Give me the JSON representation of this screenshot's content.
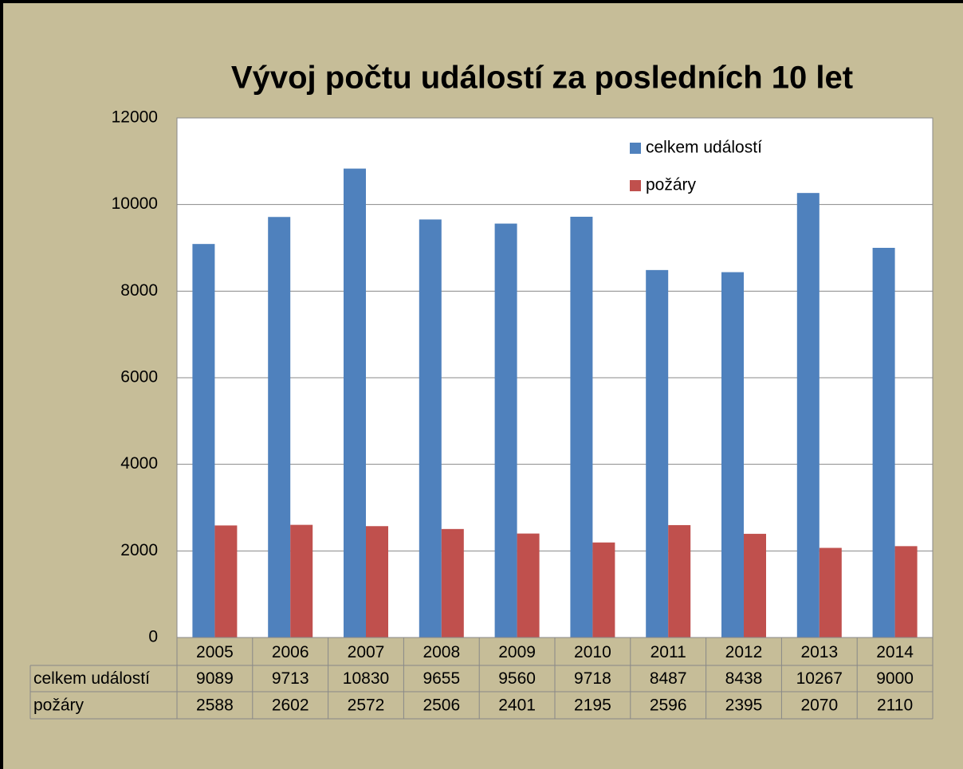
{
  "chart_data": {
    "type": "bar",
    "title": "Vývoj počtu událostí za posledních 10 let",
    "categories": [
      "2005",
      "2006",
      "2007",
      "2008",
      "2009",
      "2010",
      "2011",
      "2012",
      "2013",
      "2014"
    ],
    "series": [
      {
        "name": "celkem událostí",
        "color": "#4f81bd",
        "values": [
          9089,
          9713,
          10830,
          9655,
          9560,
          9718,
          8487,
          8438,
          10267,
          9000
        ]
      },
      {
        "name": "požáry",
        "color": "#c0504d",
        "values": [
          2588,
          2602,
          2572,
          2506,
          2401,
          2195,
          2596,
          2395,
          2070,
          2110
        ]
      }
    ],
    "ylim": [
      0,
      12000
    ],
    "yticks": [
      0,
      2000,
      4000,
      6000,
      8000,
      10000,
      12000
    ],
    "grid": true,
    "legend": "top-right",
    "data_table": true
  }
}
